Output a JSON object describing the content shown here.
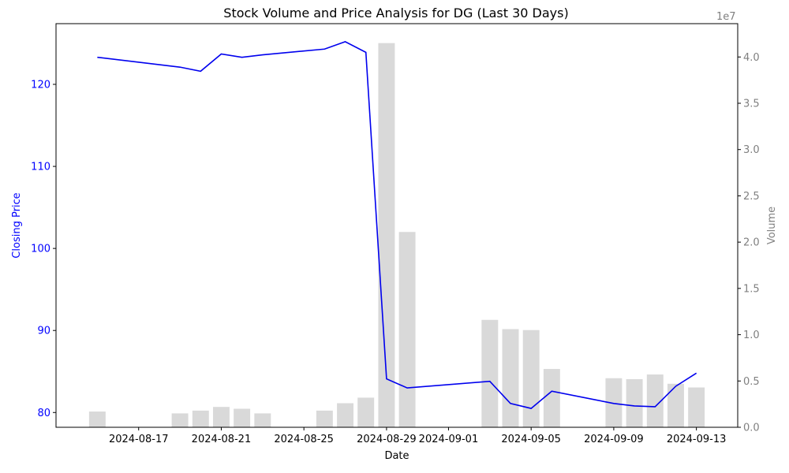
{
  "chart_data": {
    "type": "bar+line",
    "title": "Stock Volume and Price Analysis for DG (Last 30 Days)",
    "xlabel": "Date",
    "ylabel_left": "Closing Price",
    "ylabel_right": "Volume",
    "right_axis_multiplier": "1e7",
    "colors": {
      "price_line": "#0000ee",
      "left_axis": "#0000ff",
      "volume_bars": "#d9d9d9",
      "right_axis": "#808080"
    },
    "x_ticks": [
      "2024-08-17",
      "2024-08-21",
      "2024-08-25",
      "2024-08-29",
      "2024-09-01",
      "2024-09-05",
      "2024-09-09",
      "2024-09-13"
    ],
    "y_left_ticks": [
      80,
      90,
      100,
      110,
      120
    ],
    "y_left_lim": [
      78.2,
      127.4
    ],
    "y_right_ticks": [
      "0.0",
      "0.5",
      "1.0",
      "1.5",
      "2.0",
      "2.5",
      "3.0",
      "3.5",
      "4.0"
    ],
    "y_right_lim": [
      0,
      43600000
    ],
    "x_lim": [
      "2024-08-13",
      "2024-09-15"
    ],
    "series": [
      {
        "name": "Closing Price",
        "kind": "line",
        "points": [
          {
            "x": "2024-08-15",
            "y": 123.3
          },
          {
            "x": "2024-08-19",
            "y": 122.1
          },
          {
            "x": "2024-08-20",
            "y": 121.6
          },
          {
            "x": "2024-08-21",
            "y": 123.7
          },
          {
            "x": "2024-08-22",
            "y": 123.3
          },
          {
            "x": "2024-08-23",
            "y": 123.6
          },
          {
            "x": "2024-08-26",
            "y": 124.3
          },
          {
            "x": "2024-08-27",
            "y": 125.2
          },
          {
            "x": "2024-08-28",
            "y": 123.9
          },
          {
            "x": "2024-08-29",
            "y": 84.1
          },
          {
            "x": "2024-08-30",
            "y": 83.0
          },
          {
            "x": "2024-09-03",
            "y": 83.8
          },
          {
            "x": "2024-09-04",
            "y": 81.1
          },
          {
            "x": "2024-09-05",
            "y": 80.5
          },
          {
            "x": "2024-09-06",
            "y": 82.6
          },
          {
            "x": "2024-09-09",
            "y": 81.1
          },
          {
            "x": "2024-09-10",
            "y": 80.8
          },
          {
            "x": "2024-09-11",
            "y": 80.7
          },
          {
            "x": "2024-09-12",
            "y": 83.2
          },
          {
            "x": "2024-09-13",
            "y": 84.8
          }
        ]
      },
      {
        "name": "Volume",
        "kind": "bar",
        "points": [
          {
            "x": "2024-08-15",
            "y": 1700000
          },
          {
            "x": "2024-08-19",
            "y": 1500000
          },
          {
            "x": "2024-08-20",
            "y": 1800000
          },
          {
            "x": "2024-08-21",
            "y": 2200000
          },
          {
            "x": "2024-08-22",
            "y": 2000000
          },
          {
            "x": "2024-08-23",
            "y": 1500000
          },
          {
            "x": "2024-08-26",
            "y": 1800000
          },
          {
            "x": "2024-08-27",
            "y": 2600000
          },
          {
            "x": "2024-08-28",
            "y": 3200000
          },
          {
            "x": "2024-08-29",
            "y": 41500000
          },
          {
            "x": "2024-08-30",
            "y": 21100000
          },
          {
            "x": "2024-09-03",
            "y": 11600000
          },
          {
            "x": "2024-09-04",
            "y": 10600000
          },
          {
            "x": "2024-09-05",
            "y": 10500000
          },
          {
            "x": "2024-09-06",
            "y": 6300000
          },
          {
            "x": "2024-09-09",
            "y": 5300000
          },
          {
            "x": "2024-09-10",
            "y": 5200000
          },
          {
            "x": "2024-09-11",
            "y": 5700000
          },
          {
            "x": "2024-09-12",
            "y": 4700000
          },
          {
            "x": "2024-09-13",
            "y": 4300000
          }
        ]
      }
    ]
  }
}
